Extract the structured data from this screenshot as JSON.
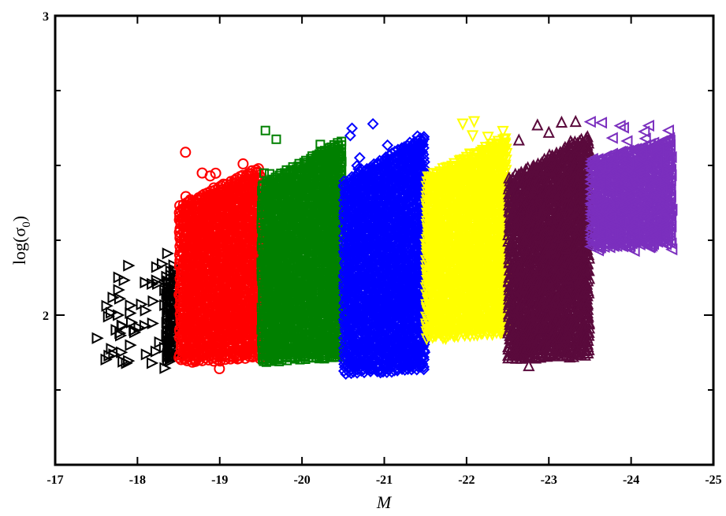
{
  "chart_data": {
    "type": "scatter",
    "title": "",
    "xlabel": "M",
    "ylabel": "log(σ0)",
    "ylabel_main": "log(σ",
    "ylabel_sub": "0",
    "ylabel_close": ")",
    "xlim": [
      -17,
      -25
    ],
    "ylim": [
      1.5,
      3
    ],
    "x_ticks": [
      -17,
      -18,
      -19,
      -20,
      -21,
      -22,
      -23,
      -24,
      -25
    ],
    "x_tick_labels": [
      "-17",
      "-18",
      "-19",
      "-20",
      "-21",
      "-22",
      "-23",
      "-24",
      "-25"
    ],
    "y_ticks": [
      2,
      3
    ],
    "y_tick_labels": [
      "2",
      "3"
    ],
    "grid": false,
    "legend": "none",
    "series": [
      {
        "marker": "triangle-right",
        "color": "#000000",
        "x_range": [
          -17.5,
          -18.5
        ],
        "y_range": [
          1.82,
          2.25
        ],
        "dense_start": -18.35
      },
      {
        "marker": "circle",
        "color": "#ff0000",
        "x_range": [
          -18.5,
          -19.5
        ],
        "y_range": [
          1.82,
          2.55
        ],
        "dense_start": -18.5
      },
      {
        "marker": "square",
        "color": "#008000",
        "x_range": [
          -19.5,
          -20.5
        ],
        "y_range": [
          1.82,
          2.64
        ],
        "dense_start": -19.5
      },
      {
        "marker": "diamond",
        "color": "#0000ff",
        "x_range": [
          -20.5,
          -21.5
        ],
        "y_range": [
          1.78,
          2.66
        ],
        "dense_start": -20.5
      },
      {
        "marker": "triangle-down",
        "color": "#ffff00",
        "x_range": [
          -21.5,
          -22.5
        ],
        "y_range": [
          1.9,
          2.65
        ],
        "dense_start": -21.5
      },
      {
        "marker": "triangle-up",
        "color": "#5a0a3c",
        "x_range": [
          -22.5,
          -23.5
        ],
        "y_range": [
          1.83,
          2.66
        ],
        "dense_start": -22.5
      },
      {
        "marker": "triangle-left",
        "color": "#7b2fbe",
        "x_range": [
          -23.5,
          -24.5
        ],
        "y_range": [
          2.2,
          2.65
        ],
        "dense_start": -23.5
      }
    ]
  }
}
